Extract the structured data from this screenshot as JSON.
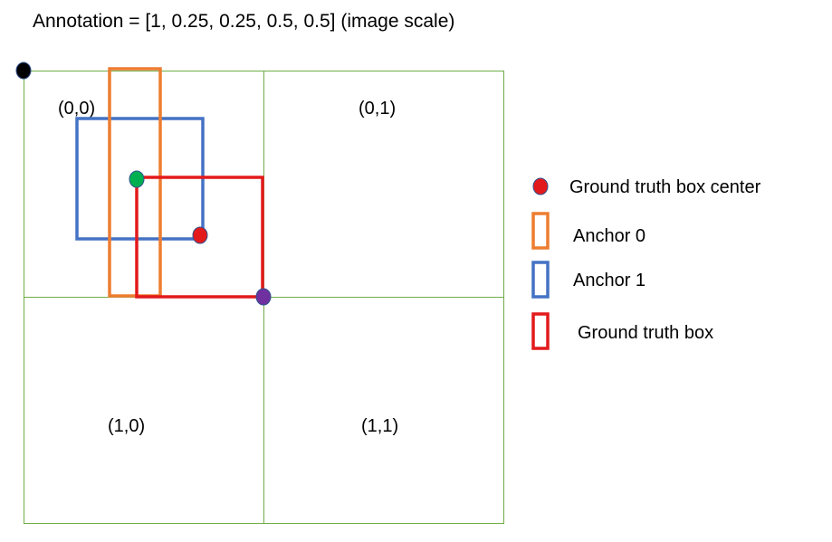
{
  "title": "Annotation = [1, 0.25, 0.25, 0.5, 0.5] (image scale)",
  "grid": {
    "cells": [
      {
        "id": "0-0",
        "label": "(0,0)"
      },
      {
        "id": "0-1",
        "label": "(0,1)"
      },
      {
        "id": "1-0",
        "label": "(1,0)"
      },
      {
        "id": "1-1",
        "label": "(1,1)"
      }
    ]
  },
  "legend": {
    "center": "Ground truth box center",
    "anchor0": "Anchor 0",
    "anchor1": "Anchor 1",
    "gt_box": "Ground truth box"
  },
  "colors": {
    "grid_line": "#70ad47",
    "anchor0": "#ed7d31",
    "anchor1": "#4472c4",
    "gt_box": "#e31a1c",
    "gt_center": "#e31a1c",
    "origin_dot": "#000000",
    "anchor_center_dot": "#00b050",
    "corner_dot": "#7030a0"
  }
}
